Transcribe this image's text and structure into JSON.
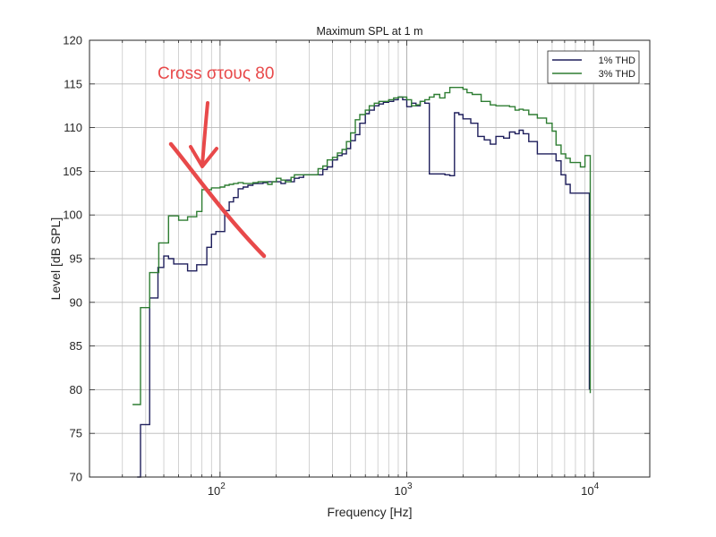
{
  "chart_data": {
    "type": "line",
    "title": "Maximum SPL at 1 m",
    "xlabel": "Frequency [Hz]",
    "ylabel": "Level [dB SPL]",
    "x_scale": "log",
    "xlim": [
      20,
      20000
    ],
    "ylim": [
      70,
      120
    ],
    "x_major_ticks": [
      {
        "value": 100,
        "base": "10",
        "exp": "2"
      },
      {
        "value": 1000,
        "base": "10",
        "exp": "3"
      },
      {
        "value": 10000,
        "base": "10",
        "exp": "4"
      }
    ],
    "y_ticks": [
      70,
      75,
      80,
      85,
      90,
      95,
      100,
      105,
      110,
      115,
      120
    ],
    "grid": true,
    "legend_position": "top-right",
    "colors": {
      "thd1": "#1f1f5c",
      "thd3": "#2e7d32",
      "annotation": "#e8494a"
    },
    "series": [
      {
        "name": "1% THD",
        "color": "#1f1f5c",
        "x": [
          36,
          37.5,
          39.5,
          42,
          44,
          46.5,
          50,
          53,
          56.5,
          60,
          67,
          75,
          80,
          85,
          90,
          95,
          100,
          106,
          112,
          118,
          125,
          133,
          141,
          150,
          160,
          170,
          180,
          190,
          200,
          212,
          224,
          240,
          250,
          265,
          280,
          300,
          315,
          335,
          355,
          375,
          400,
          425,
          450,
          475,
          500,
          530,
          560,
          600,
          630,
          670,
          710,
          750,
          800,
          850,
          900,
          950,
          1000,
          1060,
          1120,
          1180,
          1250,
          1300,
          1320,
          1600,
          1700,
          1800,
          1900,
          2000,
          2200,
          2400,
          2600,
          2800,
          3000,
          3300,
          3550,
          3800,
          4000,
          4200,
          4500,
          5000,
          5600,
          6000,
          6300,
          6700,
          7100,
          7500,
          8000,
          8500,
          9000,
          9400,
          9500
        ],
        "y": [
          70,
          76,
          76,
          90.5,
          90.5,
          94,
          95.3,
          95,
          94.4,
          94.4,
          93.6,
          94.3,
          94.3,
          96.3,
          97.8,
          98.1,
          98.1,
          100.5,
          101.5,
          102,
          103,
          103.2,
          103.4,
          103.6,
          103.6,
          103.7,
          103.8,
          103.8,
          103.8,
          103.6,
          104,
          103.8,
          104.2,
          104.3,
          104.6,
          104.6,
          104.6,
          104.6,
          105.2,
          105.5,
          106.3,
          106.8,
          107,
          107.6,
          108.5,
          109.2,
          110.5,
          111.6,
          112,
          112.5,
          112.7,
          112.9,
          113,
          113.2,
          113.5,
          113.2,
          112.4,
          112.8,
          112.5,
          113,
          112.8,
          112.8,
          104.7,
          104.6,
          104.5,
          111.7,
          111.5,
          111,
          110.5,
          109,
          108.6,
          108.1,
          109,
          108.8,
          109.5,
          109.3,
          109.7,
          109.3,
          108.4,
          107,
          107,
          107,
          106.2,
          104.6,
          103.5,
          102.5,
          102.5,
          102.5,
          102.5,
          102.5,
          80
        ]
      },
      {
        "name": "3% THD",
        "color": "#2e7d32",
        "x": [
          34,
          36,
          37.5,
          40,
          42,
          44,
          47,
          50,
          53,
          56.5,
          60,
          67,
          71,
          75,
          80,
          90,
          95,
          100,
          106,
          112,
          118,
          125,
          133,
          141,
          150,
          160,
          170,
          180,
          190,
          200,
          212,
          224,
          240,
          250,
          265,
          280,
          300,
          315,
          335,
          355,
          375,
          400,
          425,
          450,
          475,
          500,
          530,
          560,
          600,
          630,
          670,
          710,
          750,
          800,
          850,
          900,
          950,
          1000,
          1060,
          1120,
          1180,
          1250,
          1320,
          1400,
          1500,
          1600,
          1700,
          1800,
          1900,
          2000,
          2100,
          2240,
          2500,
          2800,
          3000,
          3300,
          3550,
          3800,
          4000,
          4200,
          4500,
          5000,
          5600,
          6000,
          6300,
          6700,
          7100,
          7500,
          8000,
          8500,
          9000,
          9500,
          9600
        ],
        "y": [
          78.3,
          78.3,
          89.4,
          89.4,
          93.4,
          93.4,
          96.8,
          96.8,
          99.9,
          99.9,
          99.4,
          99.8,
          99.8,
          100.4,
          102.9,
          103.1,
          103.1,
          103.2,
          103.4,
          103.5,
          103.6,
          103.7,
          103.6,
          103.6,
          103.7,
          103.8,
          103.8,
          103.5,
          103.8,
          104.2,
          104,
          103.8,
          104.3,
          104.6,
          104.6,
          104.6,
          104.6,
          104.6,
          105.3,
          105.6,
          106.3,
          106.6,
          107.1,
          107.5,
          108.4,
          109.4,
          110.9,
          111.5,
          112,
          112.5,
          112.8,
          113,
          113,
          113.2,
          113.4,
          113.5,
          113.5,
          113.2,
          112.5,
          112.6,
          113,
          113.2,
          113.5,
          113.8,
          113.4,
          114,
          114.6,
          114.6,
          114.6,
          114.4,
          114,
          113.8,
          113,
          112.6,
          112.5,
          112.5,
          112.4,
          112,
          112.1,
          112,
          111.5,
          111.1,
          110.5,
          109.6,
          108,
          107,
          106.5,
          106,
          106,
          105.5,
          106.8,
          106.8,
          79.6
        ]
      }
    ],
    "annotations": [
      {
        "text": "Cross στους 80",
        "color": "#e8494a"
      }
    ]
  }
}
